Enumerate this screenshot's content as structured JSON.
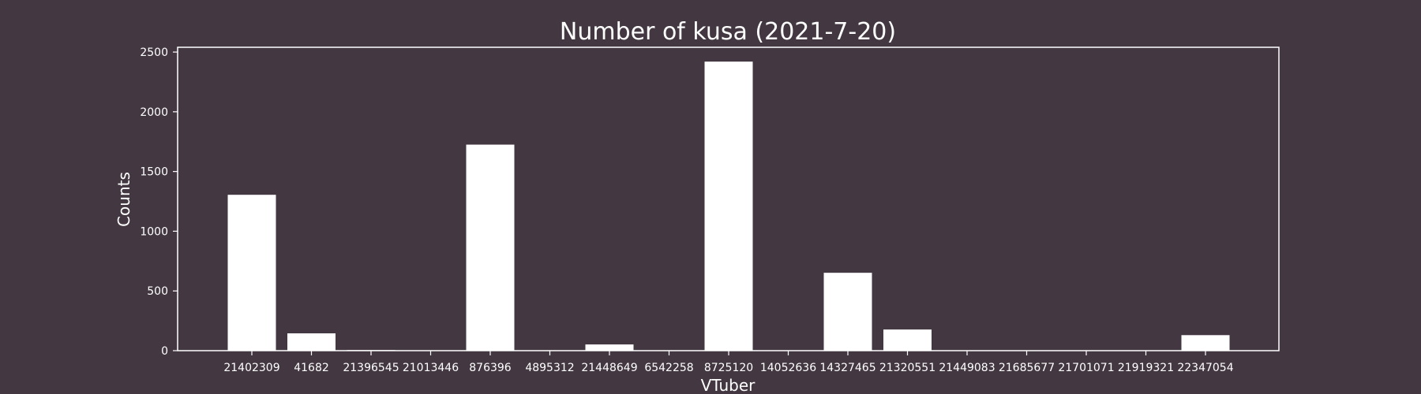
{
  "chart_data": {
    "type": "bar",
    "title": "Number of kusa (2021-7-20)",
    "xlabel": "VTuber",
    "ylabel": "Counts",
    "ylim": [
      0,
      2540
    ],
    "yticks": [
      0,
      500,
      1000,
      1500,
      2000,
      2500
    ],
    "grid": false,
    "categories": [
      "21402309",
      "41682",
      "21396545",
      "21013446",
      "876396",
      "4895312",
      "21448649",
      "6542258",
      "8725120",
      "14052636",
      "14327465",
      "21320551",
      "21449083",
      "21685677",
      "21701071",
      "21919321",
      "22347054"
    ],
    "values": [
      1305,
      145,
      5,
      0,
      1725,
      0,
      52,
      0,
      2420,
      0,
      652,
      177,
      0,
      0,
      0,
      0,
      130
    ],
    "colors": {
      "background": "#433841",
      "bar": "#ffffff",
      "axis": "#ffffff",
      "text": "#ffffff"
    }
  }
}
